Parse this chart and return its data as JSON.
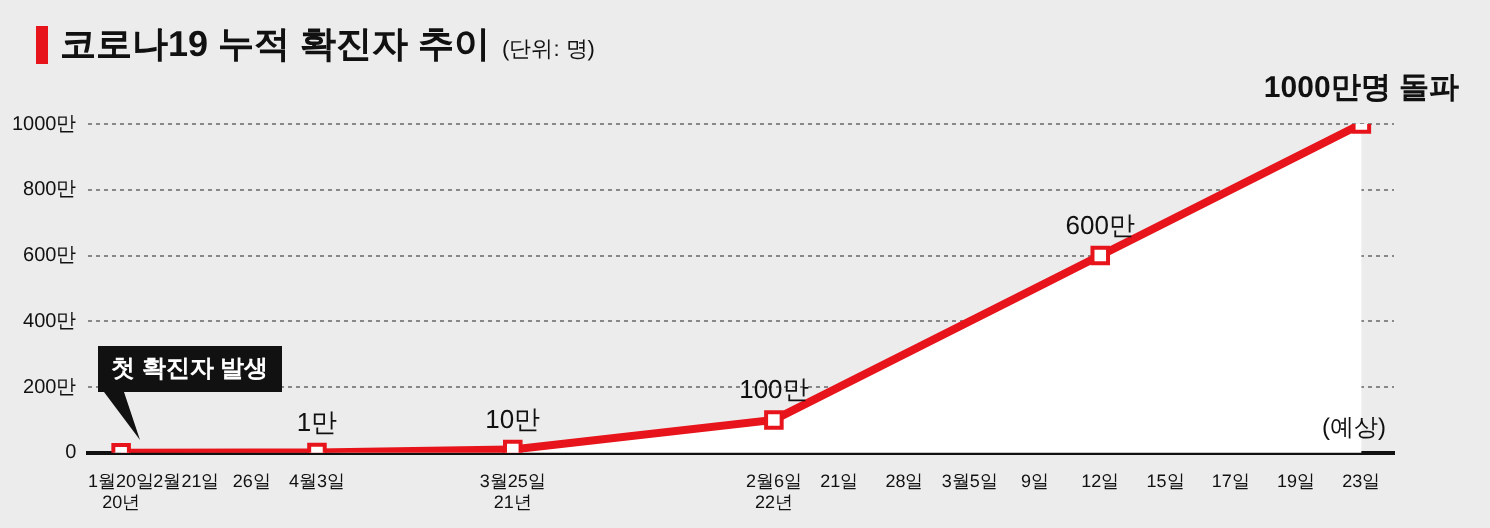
{
  "chart_data": {
    "type": "area",
    "title": "코로나19 누적 확진자 추이",
    "subtitle": "(단위: 명)",
    "categories": [
      "1월20일\n20년",
      "2월21일",
      "26일",
      "4월3일",
      null,
      null,
      "3월25일\n21년",
      null,
      null,
      null,
      "2월6일\n22년",
      "21일",
      "28일",
      "3월5일",
      "9일",
      "12일",
      "15일",
      "17일",
      "19일",
      "23일"
    ],
    "series": [
      {
        "color": "#e8141b",
        "values": [
          0,
          null,
          null,
          1,
          null,
          null,
          10,
          null,
          null,
          null,
          100,
          null,
          null,
          null,
          null,
          600,
          null,
          null,
          null,
          1000
        ],
        "value_labels": [
          null,
          null,
          null,
          "1만",
          null,
          null,
          "10만",
          null,
          null,
          null,
          "100만",
          null,
          null,
          null,
          null,
          "600만",
          null,
          null,
          null,
          "1000만명 돌파"
        ]
      }
    ],
    "ylim": [
      0,
      1000
    ],
    "yticks": [
      {
        "value": 0,
        "label": "0"
      },
      {
        "value": 200,
        "label": "200만"
      },
      {
        "value": 400,
        "label": "400만"
      },
      {
        "value": 600,
        "label": "600만"
      },
      {
        "value": 800,
        "label": "800만"
      },
      {
        "value": 1000,
        "label": "1000만"
      }
    ],
    "grid": "y",
    "legend": false,
    "marker": "square",
    "line_style": "solid",
    "annotations": [
      {
        "text": "첫 확진자 발생",
        "x": "1월20일\n20년",
        "y": 0
      },
      "(예상)"
    ]
  }
}
